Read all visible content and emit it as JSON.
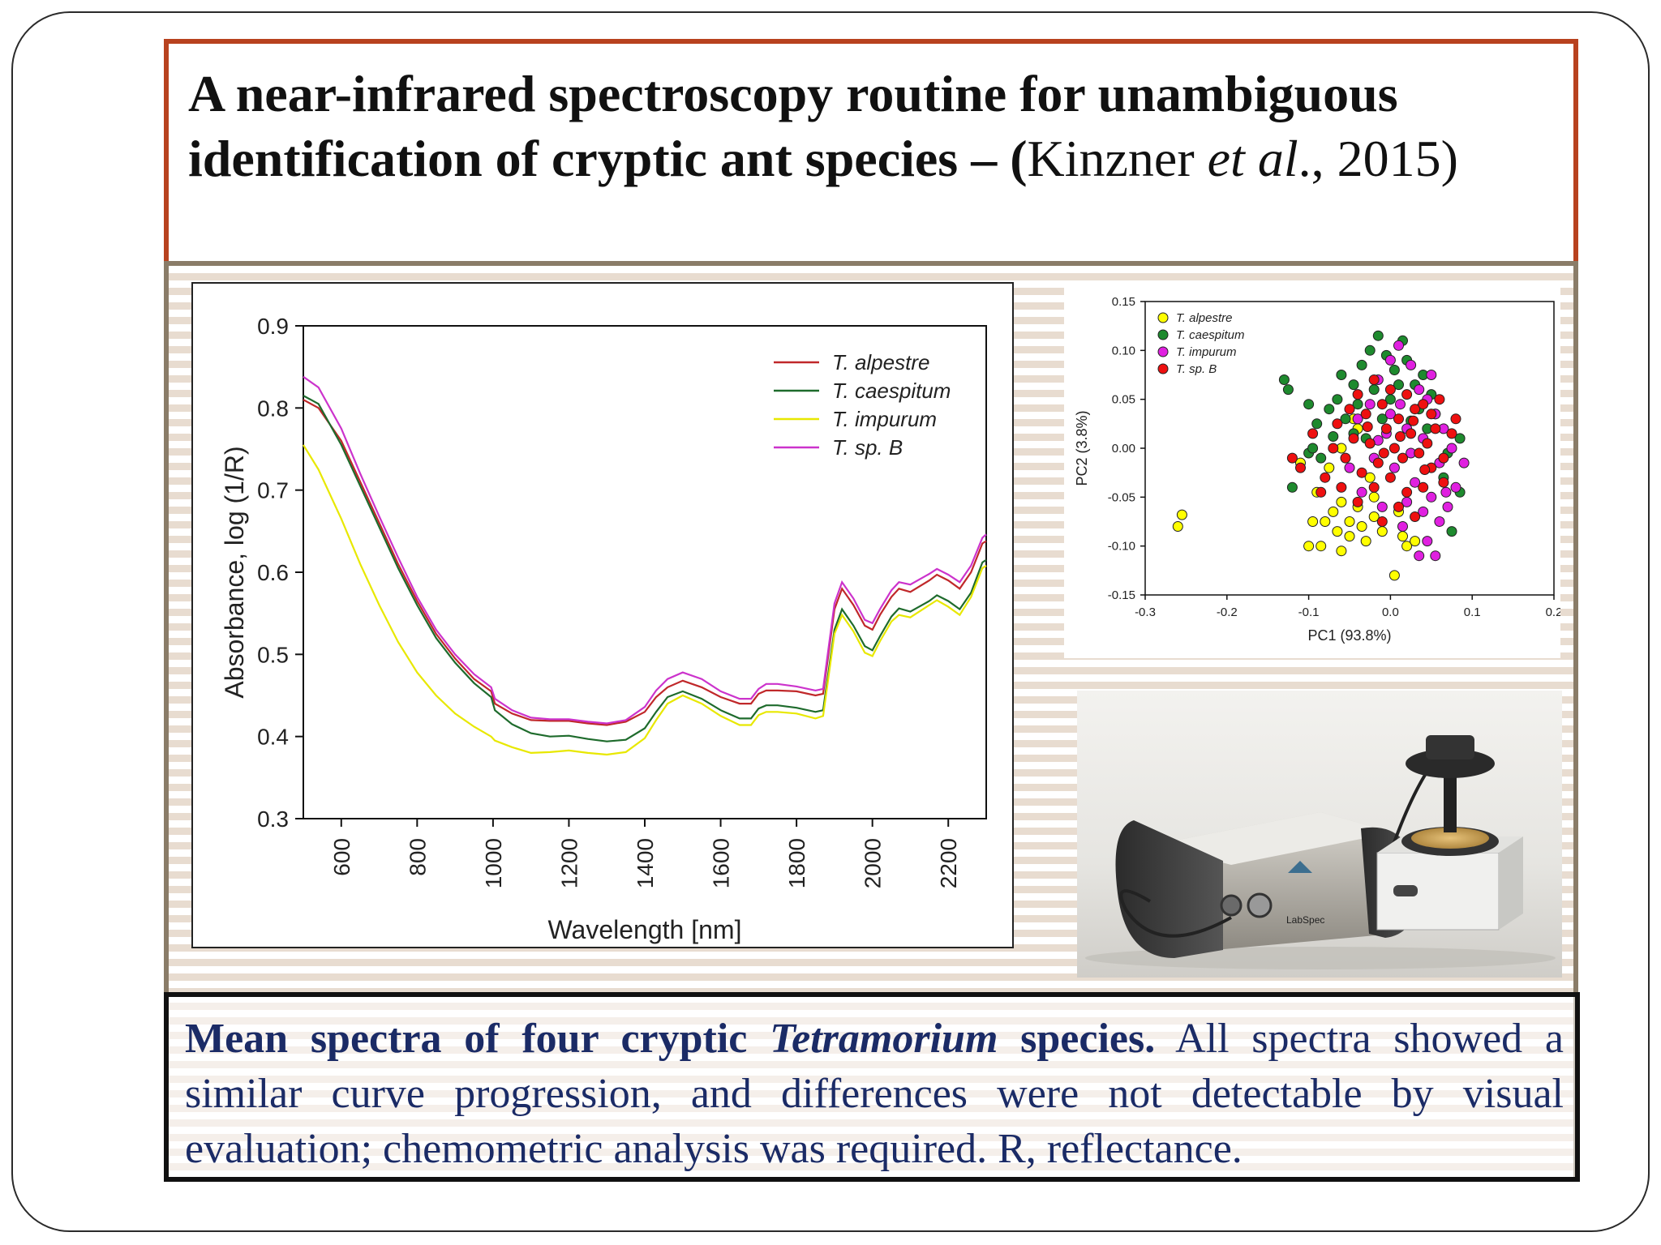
{
  "title": {
    "bold_part": "A near-infrared spectroscopy routine for unambiguous identification of cryptic ant species – (",
    "author": "Kinzner ",
    "etal": "et al",
    "year_part": "., 2015)"
  },
  "caption": {
    "bold_lead": "Mean spectra of four cryptic ",
    "bold_genus": "Tetramorium",
    "bold_tail": " species.",
    "body": " All spectra showed a similar curve progression, and differences were not detectable by visual evaluation; chemometric analysis was required. R, reflectance."
  },
  "chart_data": [
    {
      "type": "line",
      "title": "",
      "xlabel": "Wavelength [nm]",
      "ylabel": "Absorbance, log (1/R)",
      "xlim": [
        500,
        2300
      ],
      "ylim": [
        0.3,
        0.9
      ],
      "xticks": [
        "600",
        "800",
        "1000",
        "1200",
        "1400",
        "1600",
        "1800",
        "2000",
        "2200"
      ],
      "yticks": [
        "0.3",
        "0.4",
        "0.5",
        "0.6",
        "0.7",
        "0.8",
        "0.9"
      ],
      "x": [
        500,
        540,
        600,
        650,
        700,
        750,
        800,
        850,
        900,
        950,
        995,
        1005,
        1050,
        1100,
        1150,
        1200,
        1250,
        1300,
        1350,
        1400,
        1430,
        1460,
        1500,
        1550,
        1600,
        1650,
        1680,
        1700,
        1720,
        1750,
        1800,
        1850,
        1870,
        1900,
        1920,
        1950,
        1980,
        2000,
        2020,
        2050,
        2070,
        2100,
        2150,
        2170,
        2200,
        2230,
        2260,
        2290,
        2300
      ],
      "series": [
        {
          "name": "T. alpestre",
          "color": "#c0282a",
          "values": [
            0.81,
            0.8,
            0.76,
            0.71,
            0.66,
            0.61,
            0.565,
            0.525,
            0.495,
            0.47,
            0.455,
            0.44,
            0.428,
            0.42,
            0.419,
            0.419,
            0.416,
            0.414,
            0.418,
            0.43,
            0.448,
            0.46,
            0.468,
            0.46,
            0.448,
            0.44,
            0.44,
            0.452,
            0.456,
            0.456,
            0.455,
            0.45,
            0.452,
            0.555,
            0.58,
            0.56,
            0.535,
            0.53,
            0.548,
            0.57,
            0.58,
            0.576,
            0.59,
            0.597,
            0.59,
            0.58,
            0.6,
            0.635,
            0.638
          ]
        },
        {
          "name": "T. caespitum",
          "color": "#1e6b2c",
          "values": [
            0.815,
            0.805,
            0.755,
            0.705,
            0.655,
            0.605,
            0.56,
            0.52,
            0.49,
            0.465,
            0.448,
            0.432,
            0.415,
            0.404,
            0.4,
            0.401,
            0.397,
            0.394,
            0.396,
            0.41,
            0.43,
            0.448,
            0.455,
            0.446,
            0.432,
            0.422,
            0.422,
            0.434,
            0.438,
            0.438,
            0.435,
            0.43,
            0.432,
            0.53,
            0.555,
            0.535,
            0.51,
            0.505,
            0.522,
            0.546,
            0.556,
            0.552,
            0.565,
            0.572,
            0.565,
            0.555,
            0.575,
            0.612,
            0.615
          ]
        },
        {
          "name": "T. impurum",
          "color": "#e8e800",
          "values": [
            0.755,
            0.725,
            0.665,
            0.61,
            0.56,
            0.515,
            0.478,
            0.45,
            0.428,
            0.412,
            0.4,
            0.395,
            0.387,
            0.38,
            0.381,
            0.383,
            0.38,
            0.378,
            0.381,
            0.398,
            0.42,
            0.44,
            0.45,
            0.44,
            0.425,
            0.414,
            0.414,
            0.426,
            0.43,
            0.43,
            0.428,
            0.422,
            0.425,
            0.525,
            0.548,
            0.528,
            0.502,
            0.498,
            0.516,
            0.54,
            0.548,
            0.545,
            0.56,
            0.566,
            0.558,
            0.548,
            0.57,
            0.605,
            0.608
          ]
        },
        {
          "name": "T. sp. B",
          "color": "#cc33cc",
          "values": [
            0.838,
            0.825,
            0.775,
            0.72,
            0.668,
            0.618,
            0.57,
            0.53,
            0.5,
            0.476,
            0.46,
            0.446,
            0.432,
            0.423,
            0.421,
            0.421,
            0.418,
            0.416,
            0.42,
            0.436,
            0.456,
            0.47,
            0.478,
            0.47,
            0.455,
            0.446,
            0.446,
            0.458,
            0.464,
            0.464,
            0.461,
            0.456,
            0.458,
            0.562,
            0.588,
            0.568,
            0.542,
            0.538,
            0.555,
            0.578,
            0.588,
            0.585,
            0.598,
            0.604,
            0.597,
            0.588,
            0.608,
            0.642,
            0.646
          ]
        }
      ],
      "legend": "top-right"
    },
    {
      "type": "scatter",
      "xlabel": "PC1 (93.8%)",
      "ylabel": "PC2 (3.8%)",
      "xlim": [
        -0.3,
        0.2
      ],
      "ylim": [
        -0.15,
        0.15
      ],
      "xticks": [
        "-0.3",
        "-0.2",
        "-0.1",
        "0.0",
        "0.1",
        "0.2"
      ],
      "yticks": [
        "-0.15",
        "-0.10",
        "-0.05",
        "0.00",
        "0.05",
        "0.10",
        "0.15"
      ],
      "legend": "top-left",
      "series": [
        {
          "name": "T. alpestre",
          "color": "#ffff00",
          "points": [
            [
              -0.26,
              -0.08
            ],
            [
              -0.255,
              -0.068
            ],
            [
              -0.1,
              -0.1
            ],
            [
              -0.085,
              -0.1
            ],
            [
              -0.06,
              -0.105
            ],
            [
              -0.05,
              -0.09
            ],
            [
              -0.03,
              -0.095
            ],
            [
              0.005,
              -0.13
            ],
            [
              0.02,
              -0.1
            ],
            [
              0.03,
              -0.095
            ],
            [
              -0.08,
              -0.075
            ],
            [
              -0.07,
              -0.065
            ],
            [
              -0.04,
              -0.06
            ],
            [
              -0.02,
              -0.07
            ],
            [
              -0.05,
              -0.075
            ],
            [
              -0.01,
              -0.085
            ],
            [
              -0.09,
              -0.045
            ],
            [
              -0.075,
              -0.02
            ],
            [
              -0.06,
              0.0
            ],
            [
              -0.04,
              0.02
            ],
            [
              -0.02,
              -0.05
            ],
            [
              0.01,
              -0.065
            ],
            [
              -0.06,
              -0.055
            ],
            [
              -0.035,
              -0.08
            ],
            [
              -0.11,
              -0.015
            ],
            [
              -0.095,
              -0.075
            ],
            [
              -0.045,
              0.03
            ],
            [
              -0.025,
              -0.03
            ],
            [
              0.015,
              -0.09
            ],
            [
              -0.065,
              -0.085
            ]
          ]
        },
        {
          "name": "T. caespitum",
          "color": "#1e8a2e",
          "points": [
            [
              -0.13,
              0.07
            ],
            [
              -0.125,
              0.06
            ],
            [
              -0.1,
              0.045
            ],
            [
              -0.09,
              0.025
            ],
            [
              -0.075,
              0.04
            ],
            [
              -0.06,
              0.075
            ],
            [
              -0.045,
              0.065
            ],
            [
              -0.035,
              0.085
            ],
            [
              -0.025,
              0.1
            ],
            [
              -0.015,
              0.115
            ],
            [
              -0.005,
              0.095
            ],
            [
              0.005,
              0.08
            ],
            [
              0.015,
              0.11
            ],
            [
              0.02,
              0.09
            ],
            [
              0.03,
              0.065
            ],
            [
              0.04,
              0.075
            ],
            [
              0.05,
              0.055
            ],
            [
              -0.02,
              0.06
            ],
            [
              -0.04,
              0.045
            ],
            [
              -0.055,
              0.03
            ],
            [
              -0.03,
              0.01
            ],
            [
              0.0,
              0.05
            ],
            [
              0.045,
              0.02
            ],
            [
              0.07,
              -0.005
            ],
            [
              0.085,
              -0.045
            ],
            [
              0.085,
              0.01
            ],
            [
              0.065,
              -0.03
            ],
            [
              -0.085,
              -0.01
            ],
            [
              -0.12,
              -0.04
            ],
            [
              -0.1,
              -0.005
            ],
            [
              0.075,
              -0.085
            ],
            [
              -0.065,
              0.05
            ],
            [
              0.01,
              0.065
            ],
            [
              -0.01,
              0.03
            ],
            [
              0.035,
              0.04
            ],
            [
              -0.07,
              0.012
            ],
            [
              0.055,
              0.035
            ],
            [
              -0.095,
              0.0
            ],
            [
              0.025,
              0.028
            ],
            [
              -0.045,
              0.015
            ]
          ]
        },
        {
          "name": "T. impurum",
          "color": "#e020e0",
          "points": [
            [
              0.01,
              0.105
            ],
            [
              0.0,
              0.09
            ],
            [
              -0.015,
              0.07
            ],
            [
              0.025,
              0.085
            ],
            [
              0.035,
              0.06
            ],
            [
              0.045,
              0.05
            ],
            [
              0.055,
              0.035
            ],
            [
              0.065,
              0.02
            ],
            [
              0.075,
              0.0
            ],
            [
              0.09,
              -0.015
            ],
            [
              0.08,
              -0.04
            ],
            [
              0.07,
              -0.06
            ],
            [
              0.06,
              -0.075
            ],
            [
              0.045,
              -0.095
            ],
            [
              0.035,
              -0.11
            ],
            [
              0.055,
              -0.11
            ],
            [
              0.015,
              -0.08
            ],
            [
              -0.01,
              -0.06
            ],
            [
              -0.025,
              0.045
            ],
            [
              -0.04,
              0.03
            ],
            [
              0.0,
              0.035
            ],
            [
              0.02,
              0.02
            ],
            [
              0.04,
              0.01
            ],
            [
              -0.02,
              -0.01
            ],
            [
              0.005,
              -0.02
            ],
            [
              0.03,
              -0.035
            ],
            [
              0.05,
              -0.05
            ],
            [
              -0.035,
              -0.045
            ],
            [
              -0.05,
              -0.02
            ],
            [
              0.06,
              -0.015
            ],
            [
              -0.005,
              0.015
            ],
            [
              0.025,
              -0.005
            ],
            [
              0.012,
              0.045
            ],
            [
              0.04,
              -0.065
            ],
            [
              0.068,
              -0.045
            ],
            [
              -0.015,
              0.008
            ],
            [
              0.02,
              -0.055
            ],
            [
              0.05,
              0.075
            ]
          ]
        },
        {
          "name": "T. sp. B",
          "color": "#ee1010",
          "points": [
            [
              -0.12,
              -0.01
            ],
            [
              -0.11,
              -0.02
            ],
            [
              -0.095,
              0.015
            ],
            [
              -0.08,
              -0.03
            ],
            [
              -0.07,
              0.0
            ],
            [
              -0.055,
              -0.01
            ],
            [
              -0.045,
              0.01
            ],
            [
              -0.035,
              -0.025
            ],
            [
              -0.025,
              0.005
            ],
            [
              -0.015,
              -0.015
            ],
            [
              -0.005,
              0.02
            ],
            [
              0.005,
              0.0
            ],
            [
              0.015,
              -0.01
            ],
            [
              0.025,
              0.015
            ],
            [
              0.035,
              -0.005
            ],
            [
              0.045,
              0.005
            ],
            [
              0.055,
              0.02
            ],
            [
              0.065,
              -0.01
            ],
            [
              0.075,
              0.015
            ],
            [
              0.06,
              0.05
            ],
            [
              0.05,
              0.035
            ],
            [
              0.03,
              0.04
            ],
            [
              0.01,
              0.03
            ],
            [
              -0.01,
              0.045
            ],
            [
              -0.03,
              0.035
            ],
            [
              -0.05,
              0.04
            ],
            [
              -0.04,
              0.055
            ],
            [
              -0.02,
              0.07
            ],
            [
              0.0,
              0.06
            ],
            [
              0.02,
              0.055
            ],
            [
              0.04,
              0.045
            ],
            [
              0.0,
              -0.03
            ],
            [
              0.02,
              -0.045
            ],
            [
              0.04,
              -0.04
            ],
            [
              -0.02,
              -0.04
            ],
            [
              -0.04,
              -0.055
            ],
            [
              0.01,
              -0.06
            ],
            [
              0.03,
              -0.07
            ],
            [
              -0.01,
              -0.075
            ],
            [
              0.05,
              -0.02
            ],
            [
              0.065,
              -0.035
            ],
            [
              -0.06,
              -0.04
            ],
            [
              -0.085,
              -0.045
            ],
            [
              0.08,
              0.03
            ],
            [
              -0.065,
              0.025
            ],
            [
              0.012,
              0.012
            ],
            [
              -0.008,
              -0.005
            ],
            [
              0.028,
              0.028
            ],
            [
              0.042,
              -0.022
            ],
            [
              -0.028,
              0.022
            ]
          ]
        }
      ]
    }
  ],
  "photo": {
    "device_label": "LabSpec"
  }
}
